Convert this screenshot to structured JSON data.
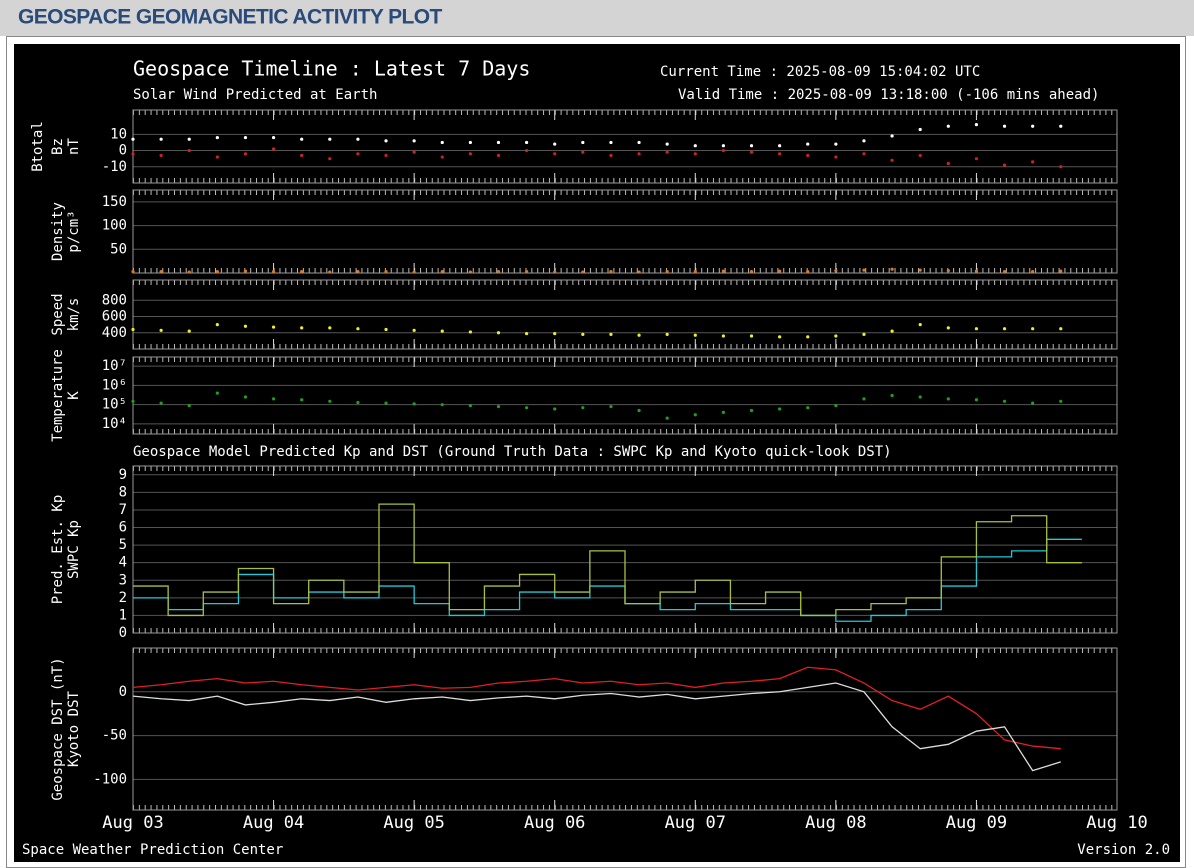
{
  "header": {
    "title": "GEOSPACE GEOMAGNETIC ACTIVITY PLOT"
  },
  "title": "Geospace Timeline : Latest 7 Days",
  "subtitle": "Solar Wind Predicted at Earth",
  "current_time": "Current Time : 2025-08-09 15:04:02 UTC",
  "valid_time": "Valid Time : 2025-08-09 13:18:00 (-106 mins ahead)",
  "model_title": "Geospace Model Predicted Kp and DST (Ground Truth Data : SWPC Kp and Kyoto quick-look DST)",
  "footer_left": "Space Weather Prediction Center",
  "footer_right": "Version 2.0",
  "chart_data": [
    {
      "type": "scatter",
      "ylabel": "nT",
      "x": [
        0,
        0.2,
        0.4,
        0.6,
        0.8,
        1,
        1.2,
        1.4,
        1.6,
        1.8,
        2,
        2.2,
        2.4,
        2.6,
        2.8,
        3,
        3.2,
        3.4,
        3.6,
        3.8,
        4,
        4.2,
        4.4,
        4.6,
        4.8,
        5,
        5.2,
        5.4,
        5.6,
        5.8,
        6,
        6.2,
        6.4,
        6.6
      ],
      "series": [
        {
          "name": "Btotal",
          "color": "#ffffff",
          "values": [
            7,
            7,
            7,
            8,
            8,
            8,
            7,
            7,
            7,
            6,
            6,
            5,
            5,
            5,
            5,
            4,
            5,
            5,
            5,
            4,
            3,
            3,
            3,
            3,
            4,
            4,
            6,
            9,
            13,
            15,
            16,
            15,
            15,
            15
          ]
        },
        {
          "name": "Bz",
          "color": "#d42020",
          "values": [
            -2,
            -3,
            0,
            -4,
            -2,
            1,
            -3,
            -5,
            -2,
            -3,
            -1,
            -4,
            -2,
            -3,
            0,
            -2,
            -1,
            -3,
            -2,
            -1,
            -2,
            0,
            -1,
            -2,
            -3,
            -4,
            -2,
            -6,
            -3,
            -8,
            -5,
            -9,
            -7,
            -10
          ]
        }
      ],
      "xlim": [
        0,
        7
      ],
      "ylim": [
        -20,
        25
      ],
      "yticks": [
        -10,
        0,
        10
      ],
      "grid": true
    },
    {
      "type": "scatter",
      "ylabel": "p/cm³",
      "x": [
        0,
        0.2,
        0.4,
        0.6,
        0.8,
        1,
        1.2,
        1.4,
        1.6,
        1.8,
        2,
        2.2,
        2.4,
        2.6,
        2.8,
        3,
        3.2,
        3.4,
        3.6,
        3.8,
        4,
        4.2,
        4.4,
        4.6,
        4.8,
        5,
        5.2,
        5.4,
        5.6,
        5.8,
        6,
        6.2,
        6.4,
        6.6
      ],
      "series": [
        {
          "name": "Density",
          "color": "#e07820",
          "values": [
            3,
            3,
            2,
            3,
            4,
            3,
            3,
            2,
            3,
            3,
            2,
            3,
            2,
            3,
            3,
            2,
            2,
            3,
            2,
            3,
            3,
            4,
            3,
            4,
            3,
            5,
            6,
            8,
            6,
            5,
            4,
            3,
            3,
            4
          ]
        }
      ],
      "xlim": [
        0,
        7
      ],
      "ylim": [
        0,
        175
      ],
      "yticks": [
        50,
        100,
        150
      ],
      "grid": true
    },
    {
      "type": "scatter",
      "ylabel": "km/s",
      "x": [
        0,
        0.2,
        0.4,
        0.6,
        0.8,
        1,
        1.2,
        1.4,
        1.6,
        1.8,
        2,
        2.2,
        2.4,
        2.6,
        2.8,
        3,
        3.2,
        3.4,
        3.6,
        3.8,
        4,
        4.2,
        4.4,
        4.6,
        4.8,
        5,
        5.2,
        5.4,
        5.6,
        5.8,
        6,
        6.2,
        6.4,
        6.6
      ],
      "series": [
        {
          "name": "Speed",
          "color": "#f0f020",
          "values": [
            440,
            430,
            420,
            500,
            480,
            470,
            460,
            460,
            450,
            440,
            430,
            420,
            410,
            400,
            390,
            390,
            380,
            380,
            370,
            380,
            370,
            360,
            360,
            350,
            350,
            360,
            380,
            420,
            500,
            460,
            450,
            450,
            450,
            450
          ]
        }
      ],
      "xlim": [
        0,
        7
      ],
      "ylim": [
        200,
        1050
      ],
      "yticks": [
        400,
        600,
        800
      ],
      "grid": true
    },
    {
      "type": "scatter",
      "ylabel": "K",
      "log_scale": true,
      "x": [
        0,
        0.2,
        0.4,
        0.6,
        0.8,
        1,
        1.2,
        1.4,
        1.6,
        1.8,
        2,
        2.2,
        2.4,
        2.6,
        2.8,
        3,
        3.2,
        3.4,
        3.6,
        3.8,
        4,
        4.2,
        4.4,
        4.6,
        4.8,
        5,
        5.2,
        5.4,
        5.6,
        5.8,
        6,
        6.2,
        6.4,
        6.6
      ],
      "series": [
        {
          "name": "Temperature",
          "color": "#20a020",
          "values": [
            150000,
            120000,
            90000,
            400000,
            250000,
            200000,
            180000,
            150000,
            130000,
            120000,
            110000,
            100000,
            90000,
            80000,
            70000,
            60000,
            70000,
            80000,
            50000,
            20000,
            30000,
            40000,
            50000,
            60000,
            70000,
            90000,
            200000,
            300000,
            250000,
            200000,
            180000,
            150000,
            120000,
            150000
          ]
        }
      ],
      "xlim": [
        0,
        7
      ],
      "ylim": [
        3000,
        30000000
      ],
      "yticks": [
        {
          "value": 10000,
          "label": "10⁴"
        },
        {
          "value": 100000,
          "label": "10⁵"
        },
        {
          "value": 1000000,
          "label": "10⁶"
        },
        {
          "value": 10000000,
          "label": "10⁷"
        }
      ],
      "grid": true
    },
    {
      "type": "step",
      "x": [
        0,
        0.25,
        0.5,
        0.75,
        1,
        1.25,
        1.5,
        1.75,
        2,
        2.25,
        2.5,
        2.75,
        3,
        3.25,
        3.5,
        3.75,
        4,
        4.25,
        4.5,
        4.75,
        5,
        5.25,
        5.5,
        5.75,
        6,
        6.25,
        6.5
      ],
      "series": [
        {
          "name": "Pred. Est. Kp",
          "color": "#a8c040",
          "values": [
            2.67,
            1,
            2.33,
            3.67,
            1.67,
            3,
            2.33,
            7.33,
            4,
            1.33,
            2.67,
            3.33,
            2.33,
            4.67,
            1.67,
            2.33,
            3,
            1.67,
            2.33,
            1,
            1.33,
            1.67,
            2,
            4.33,
            6.33,
            6.67,
            4
          ]
        },
        {
          "name": "SWPC Kp",
          "color": "#20c8d8",
          "values": [
            2,
            1.33,
            1.67,
            3.33,
            2,
            2.33,
            2,
            2.67,
            1.67,
            1,
            1.33,
            2.33,
            2,
            2.67,
            1.67,
            1.33,
            1.67,
            1.33,
            1.33,
            1,
            0.67,
            1,
            1.33,
            2.67,
            4.33,
            4.67,
            5.33
          ]
        }
      ],
      "xlim": [
        0,
        7
      ],
      "ylim": [
        0,
        9.5
      ],
      "yticks": [
        0,
        1,
        2,
        3,
        4,
        5,
        6,
        7,
        8,
        9
      ],
      "grid": true
    },
    {
      "type": "line",
      "x": [
        0,
        0.2,
        0.4,
        0.6,
        0.8,
        1,
        1.2,
        1.4,
        1.6,
        1.8,
        2,
        2.2,
        2.4,
        2.6,
        2.8,
        3,
        3.2,
        3.4,
        3.6,
        3.8,
        4,
        4.2,
        4.4,
        4.6,
        4.8,
        5,
        5.2,
        5.4,
        5.6,
        5.8,
        6,
        6.2,
        6.4,
        6.6
      ],
      "series": [
        {
          "name": "Geospace DST (nT)",
          "color": "#dddddd",
          "values": [
            -5,
            -8,
            -10,
            -5,
            -15,
            -12,
            -8,
            -10,
            -6,
            -12,
            -8,
            -6,
            -10,
            -7,
            -5,
            -8,
            -4,
            -2,
            -6,
            -3,
            -8,
            -5,
            -2,
            0,
            5,
            10,
            0,
            -40,
            -65,
            -60,
            -45,
            -40,
            -90,
            -80
          ]
        },
        {
          "name": "Kyoto DST",
          "color": "#e02020",
          "values": [
            5,
            8,
            12,
            15,
            10,
            12,
            8,
            5,
            2,
            5,
            8,
            4,
            5,
            10,
            12,
            15,
            10,
            12,
            8,
            10,
            5,
            10,
            12,
            15,
            28,
            25,
            10,
            -10,
            -20,
            -5,
            -25,
            -55,
            -62,
            -65
          ]
        }
      ],
      "xlim": [
        0,
        7
      ],
      "ylim": [
        -135,
        50
      ],
      "yticks": [
        -100,
        -50,
        0
      ],
      "grid": true,
      "xticks": [
        {
          "value": 0,
          "label": "Aug 03"
        },
        {
          "value": 1,
          "label": "Aug 04"
        },
        {
          "value": 2,
          "label": "Aug 05"
        },
        {
          "value": 3,
          "label": "Aug 06"
        },
        {
          "value": 4,
          "label": "Aug 07"
        },
        {
          "value": 5,
          "label": "Aug 08"
        },
        {
          "value": 6,
          "label": "Aug 09"
        },
        {
          "value": 7,
          "label": "Aug 10"
        }
      ]
    }
  ]
}
